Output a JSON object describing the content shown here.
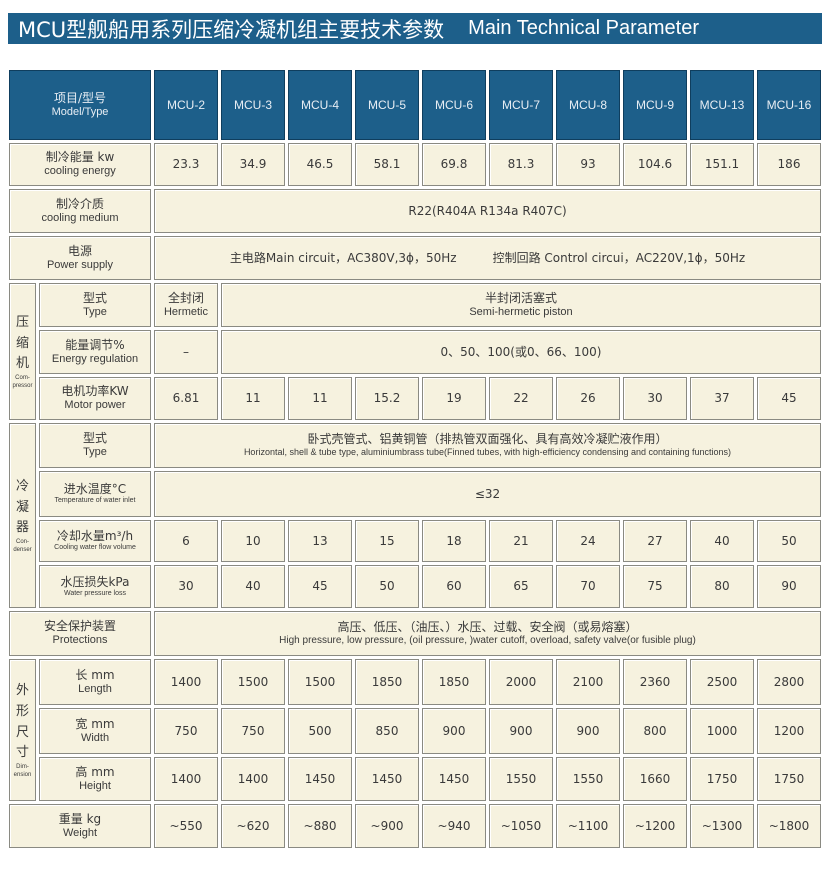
{
  "title": {
    "cn": "MCU型舰船用系列压缩冷凝机组主要技术参数",
    "en": "Main Technical Parameter"
  },
  "colors": {
    "header_bg": "#1d5f8a",
    "cell_bg": "#f6f2df"
  },
  "header": {
    "cn": "项目/型号",
    "en": "Model/Type",
    "models": [
      "MCU-2",
      "MCU-3",
      "MCU-4",
      "MCU-5",
      "MCU-6",
      "MCU-7",
      "MCU-8",
      "MCU-9",
      "MCU-13",
      "MCU-16"
    ]
  },
  "groups": {
    "compressor": {
      "cn": "压缩机",
      "en": "Com-pressor"
    },
    "condenser": {
      "cn": "冷凝器",
      "en": "Con-denser"
    },
    "dimension": {
      "cn": "外形尺寸",
      "en": "Dim-ension"
    }
  },
  "rows": {
    "cooling_energy": {
      "cn": "制冷能量 kw",
      "en": "cooling energy",
      "values": [
        "23.3",
        "34.9",
        "46.5",
        "58.1",
        "69.8",
        "81.3",
        "93",
        "104.6",
        "151.1",
        "186"
      ]
    },
    "cooling_medium": {
      "cn": "制冷介质",
      "en": "cooling medium",
      "value": "R22(R404A R134a R407C)"
    },
    "power_supply": {
      "cn": "电源",
      "en": "Power supply",
      "value": "主电路Main circuit，AC380V,3ϕ，50Hz　　　控制回路 Control circui，AC220V,1ϕ，50Hz"
    },
    "comp_type": {
      "cn": "型式",
      "en": "Type",
      "first_cn": "全封闭",
      "first_en": "Hermetic",
      "rest_cn": "半封闭活塞式",
      "rest_en": "Semi-hermetic piston"
    },
    "energy_regulation": {
      "cn": "能量调节%",
      "en": "Energy regulation",
      "first": "–",
      "rest": "0、50、100(或0、66、100)"
    },
    "motor_power": {
      "cn": "电机功率KW",
      "en": "Motor power",
      "values": [
        "6.81",
        "11",
        "11",
        "15.2",
        "19",
        "22",
        "26",
        "30",
        "37",
        "45"
      ]
    },
    "cond_type": {
      "cn": "型式",
      "en": "Type",
      "value_cn": "卧式壳管式、铝黄铜管（排热管双面强化、具有高效冷凝贮液作用）",
      "value_en": "Horizontal, shell & tube type, aluminiumbrass tube(Finned tubes, with high-efficiency condensing and containing functions)"
    },
    "water_inlet_temp": {
      "cn": "进水温度°C",
      "en": "Temperature of water inlet",
      "value": "≤32"
    },
    "cooling_water_flow": {
      "cn": "冷却水量m³/h",
      "en": "Cooling water flow volume",
      "values": [
        "6",
        "10",
        "13",
        "15",
        "18",
        "21",
        "24",
        "27",
        "40",
        "50"
      ]
    },
    "water_pressure_loss": {
      "cn": "水压损失kPa",
      "en": "Water pressure loss",
      "values": [
        "30",
        "40",
        "45",
        "50",
        "60",
        "65",
        "70",
        "75",
        "80",
        "90"
      ]
    },
    "protections": {
      "cn": "安全保护装置",
      "en": "Protections",
      "value_cn": "高压、低压、（油压、）水压、过载、安全阀（或易熔塞）",
      "value_en": "High pressure, low pressure, (oil pressure, )water cutoff, overload, safety valve(or fusible plug)"
    },
    "length": {
      "cn": "长 mm",
      "en": "Length",
      "values": [
        "1400",
        "1500",
        "1500",
        "1850",
        "1850",
        "2000",
        "2100",
        "2360",
        "2500",
        "2800"
      ]
    },
    "width": {
      "cn": "宽 mm",
      "en": "Width",
      "values": [
        "750",
        "750",
        "500",
        "850",
        "900",
        "900",
        "900",
        "800",
        "1000",
        "1200"
      ]
    },
    "height": {
      "cn": "高 mm",
      "en": "Height",
      "values": [
        "1400",
        "1400",
        "1450",
        "1450",
        "1450",
        "1550",
        "1550",
        "1660",
        "1750",
        "1750"
      ]
    },
    "weight": {
      "cn": "重量 kg",
      "en": "Weight",
      "values": [
        "~550",
        "~620",
        "~880",
        "~900",
        "~940",
        "~1050",
        "~1100",
        "~1200",
        "~1300",
        "~1800"
      ]
    }
  }
}
